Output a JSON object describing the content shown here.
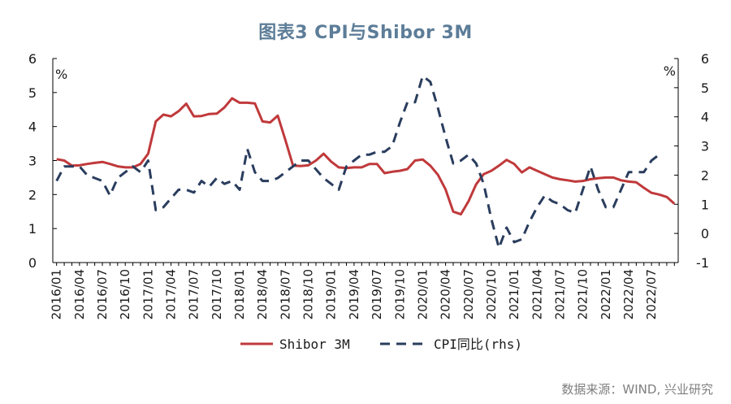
{
  "title": "图表3  CPI与Shibor 3M",
  "source": "数据来源：WIND, 兴业研究",
  "chart_data": {
    "type": "line",
    "title": "图表3  CPI与Shibor 3M",
    "left_axis": {
      "unit": "%",
      "ylim": [
        0,
        6
      ],
      "ticks": [
        "0",
        "1",
        "2",
        "3",
        "4",
        "5",
        "6"
      ]
    },
    "right_axis": {
      "unit": "%",
      "ylim": [
        -1,
        6
      ],
      "ticks": [
        "-1",
        "0",
        "1",
        "2",
        "3",
        "4",
        "5",
        "6"
      ]
    },
    "x_tick_labels": [
      "2016/01",
      "2016/04",
      "2016/07",
      "2016/10",
      "2017/01",
      "2017/04",
      "2017/07",
      "2017/10",
      "2018/01",
      "2018/04",
      "2018/07",
      "2018/10",
      "2019/01",
      "2019/04",
      "2019/07",
      "2019/10",
      "2020/01",
      "2020/04",
      "2020/07",
      "2020/10",
      "2021/01",
      "2021/04",
      "2021/07",
      "2021/10",
      "2022/01",
      "2022/04",
      "2022/07"
    ],
    "x_start": "2016/01",
    "grid": false,
    "legend": "bottom",
    "series": [
      {
        "name": "Shibor 3M",
        "axis": "left",
        "color": "#c0393b",
        "style": "solid",
        "values": [
          3.04,
          3.0,
          2.85,
          2.86,
          2.9,
          2.93,
          2.96,
          2.9,
          2.83,
          2.8,
          2.8,
          2.9,
          3.2,
          4.15,
          4.35,
          4.3,
          4.45,
          4.67,
          4.3,
          4.31,
          4.37,
          4.38,
          4.56,
          4.83,
          4.7,
          4.7,
          4.68,
          4.15,
          4.12,
          4.32,
          3.6,
          2.85,
          2.84,
          2.86,
          3.0,
          3.2,
          2.97,
          2.8,
          2.78,
          2.8,
          2.8,
          2.9,
          2.9,
          2.63,
          2.67,
          2.7,
          2.75,
          3.0,
          3.03,
          2.85,
          2.58,
          2.15,
          1.5,
          1.42,
          1.8,
          2.3,
          2.6,
          2.7,
          2.85,
          3.02,
          2.9,
          2.65,
          2.8,
          2.7,
          2.6,
          2.5,
          2.45,
          2.42,
          2.38,
          2.4,
          2.45,
          2.48,
          2.5,
          2.5,
          2.42,
          2.38,
          2.36,
          2.2,
          2.05,
          2.0,
          1.93,
          1.73
        ]
      },
      {
        "name": "CPI同比(rhs)",
        "axis": "right",
        "color": "#2a3d5e",
        "style": "dashed",
        "values": [
          1.8,
          2.3,
          2.3,
          2.3,
          2.0,
          1.9,
          1.8,
          1.3,
          1.9,
          2.1,
          2.3,
          2.1,
          2.5,
          0.8,
          0.9,
          1.2,
          1.5,
          1.5,
          1.4,
          1.8,
          1.6,
          1.9,
          1.7,
          1.8,
          1.5,
          2.9,
          2.1,
          1.8,
          1.8,
          1.9,
          2.1,
          2.3,
          2.5,
          2.5,
          2.2,
          1.9,
          1.7,
          1.5,
          2.3,
          2.5,
          2.7,
          2.7,
          2.8,
          2.8,
          3.0,
          3.8,
          4.5,
          4.5,
          5.4,
          5.2,
          4.3,
          3.3,
          2.4,
          2.5,
          2.7,
          2.4,
          1.7,
          0.5,
          -0.5,
          0.2,
          -0.3,
          -0.2,
          0.4,
          0.9,
          1.3,
          1.1,
          1.0,
          0.8,
          0.7,
          1.5,
          2.3,
          1.5,
          0.9,
          0.9,
          1.5,
          2.1,
          2.1,
          2.1,
          2.5,
          2.7
        ]
      }
    ]
  }
}
